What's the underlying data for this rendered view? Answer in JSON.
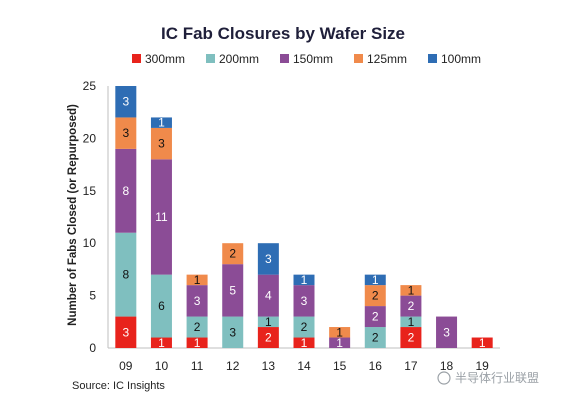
{
  "chart_data": {
    "type": "bar",
    "stacked": true,
    "title": "IC Fab Closures by Wafer Size",
    "ylabel": "Number of Fabs Closed (or Repurposed)",
    "xlabel": "",
    "categories": [
      "09",
      "10",
      "11",
      "12",
      "13",
      "14",
      "15",
      "16",
      "17",
      "18",
      "19"
    ],
    "ylim": [
      0,
      25
    ],
    "yticks": [
      0,
      5,
      10,
      15,
      20,
      25
    ],
    "grid": false,
    "legend": "top",
    "series": [
      {
        "name": "300mm",
        "color": "#e8231c",
        "values": [
          3,
          1,
          1,
          0,
          2,
          1,
          0,
          0,
          2,
          0,
          1
        ]
      },
      {
        "name": "200mm",
        "color": "#7fbfbf",
        "values": [
          8,
          6,
          2,
          3,
          1,
          2,
          0,
          2,
          1,
          0,
          0
        ]
      },
      {
        "name": "150mm",
        "color": "#8b4c96",
        "values": [
          8,
          11,
          3,
          5,
          4,
          3,
          1,
          2,
          2,
          3,
          0
        ]
      },
      {
        "name": "125mm",
        "color": "#f08a4b",
        "values": [
          3,
          3,
          1,
          2,
          0,
          0,
          1,
          2,
          1,
          0,
          0
        ]
      },
      {
        "name": "100mm",
        "color": "#2e6db4",
        "values": [
          3,
          1,
          0,
          0,
          3,
          1,
          0,
          1,
          0,
          0,
          0
        ]
      }
    ],
    "source": "Source:  IC Insights"
  },
  "watermark": "半导体行业联盟"
}
